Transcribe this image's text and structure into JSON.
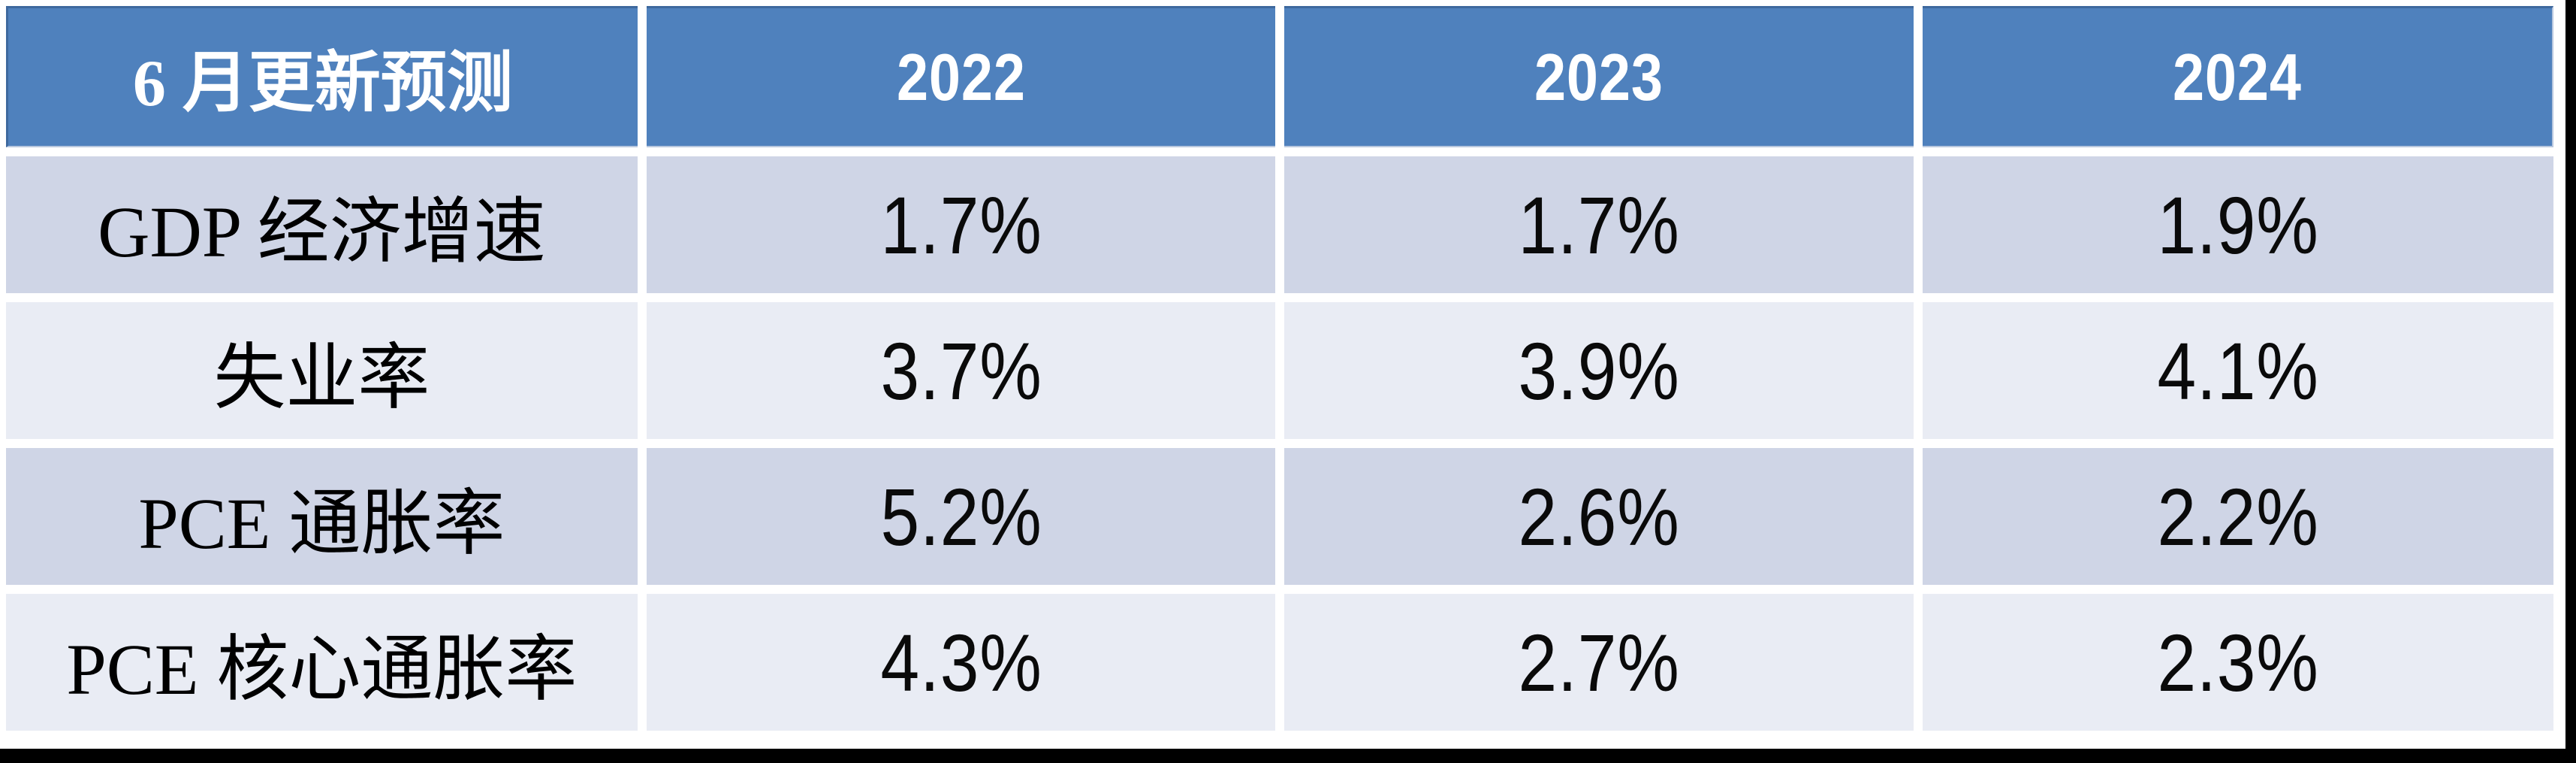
{
  "colors": {
    "header_bg": "#4f81bd",
    "header_border_dark": "#3e699e",
    "header_text": "#ffffff",
    "row_odd_bg": "#cfd5e6",
    "row_even_bg": "#e9ecf4",
    "gap": "#ffffff",
    "frame": "#000000",
    "cell_text": "#000000"
  },
  "chart_data": {
    "type": "table",
    "title": "6 月更新预测",
    "columns": [
      "6 月更新预测",
      "2022",
      "2023",
      "2024"
    ],
    "rows": [
      {
        "label": "GDP 经济增速",
        "values": [
          "1.7%",
          "1.7%",
          "1.9%"
        ]
      },
      {
        "label": "失业率",
        "values": [
          "3.7%",
          "3.9%",
          "4.1%"
        ]
      },
      {
        "label": "PCE 通胀率",
        "values": [
          "5.2%",
          "2.6%",
          "2.2%"
        ]
      },
      {
        "label": "PCE 核心通胀率",
        "values": [
          "4.3%",
          "2.7%",
          "2.3%"
        ]
      }
    ]
  }
}
